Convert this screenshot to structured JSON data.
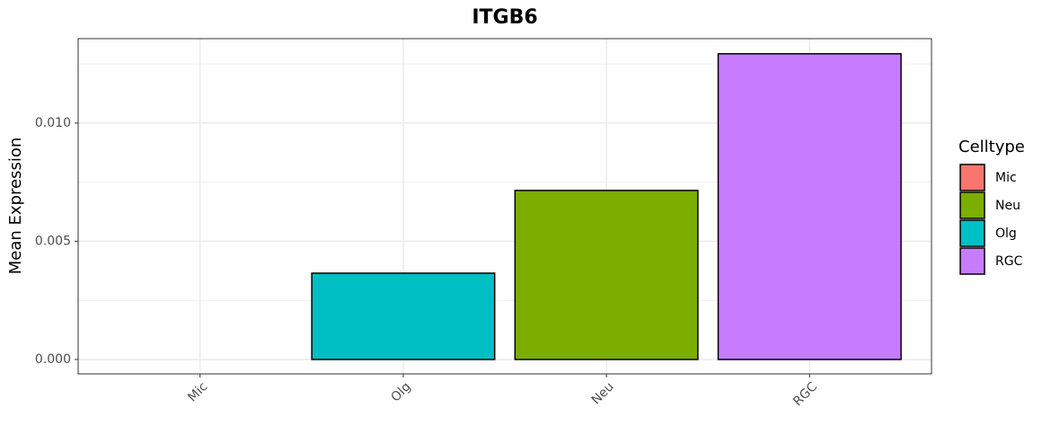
{
  "chart_data": {
    "type": "bar",
    "title": "ITGB6",
    "y_label": "Mean Expression",
    "categories": [
      "Mic",
      "Olg",
      "Neu",
      "RGC"
    ],
    "values": [
      0,
      0.00365,
      0.00715,
      0.01293
    ],
    "colors": [
      "#F8766D",
      "#00BFC4",
      "#7CAE00",
      "#C77CFF"
    ],
    "ylim": [
      -0.00061,
      0.01357
    ],
    "yticks": [
      {
        "value": 0,
        "label": "0.000"
      },
      {
        "value": 0.005,
        "label": "0.005"
      },
      {
        "value": 0.01,
        "label": "0.010"
      }
    ],
    "y_minor_ticks": [
      0.0025,
      0.0075,
      0.0125
    ],
    "grid": true,
    "legend": {
      "title": "Celltype",
      "position": "right",
      "entries": [
        {
          "name": "Mic",
          "color": "#F8766D"
        },
        {
          "name": "Neu",
          "color": "#7CAE00"
        },
        {
          "name": "Olg",
          "color": "#00BFC4"
        },
        {
          "name": "RGC",
          "color": "#C77CFF"
        }
      ]
    }
  }
}
